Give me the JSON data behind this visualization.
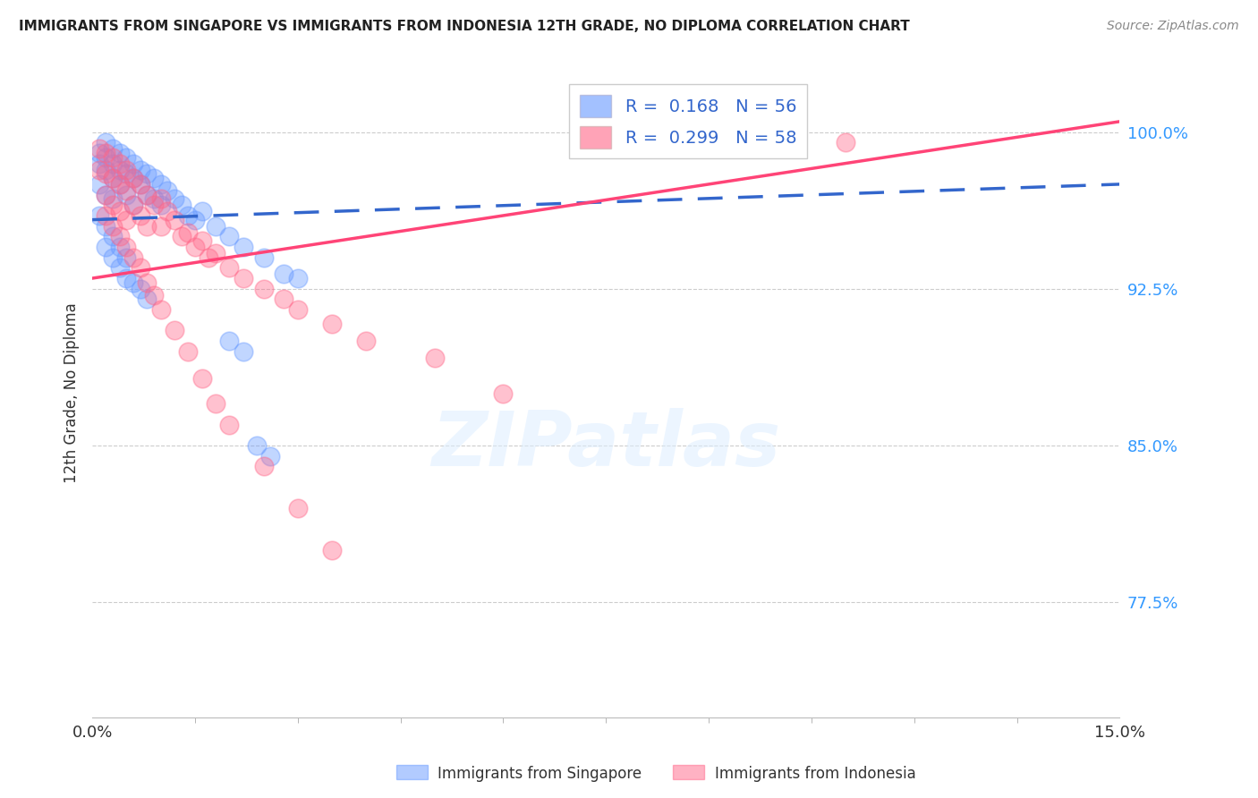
{
  "title": "IMMIGRANTS FROM SINGAPORE VS IMMIGRANTS FROM INDONESIA 12TH GRADE, NO DIPLOMA CORRELATION CHART",
  "source": "Source: ZipAtlas.com",
  "ylabel": "12th Grade, No Diploma",
  "ytick_labels": [
    "100.0%",
    "92.5%",
    "85.0%",
    "77.5%"
  ],
  "ytick_values": [
    1.0,
    0.925,
    0.85,
    0.775
  ],
  "xlim": [
    0.0,
    0.15
  ],
  "ylim": [
    0.72,
    1.03
  ],
  "singapore_color": "#6699FF",
  "indonesia_color": "#FF6688",
  "sg_line_color": "#3366CC",
  "id_line_color": "#FF4477",
  "singapore_R": 0.168,
  "singapore_N": 56,
  "indonesia_R": 0.299,
  "indonesia_N": 58,
  "legend_label_1": "Immigrants from Singapore",
  "legend_label_2": "Immigrants from Indonesia",
  "watermark": "ZIPatlas",
  "sg_line_x0": 0.0,
  "sg_line_x1": 0.15,
  "sg_line_y0": 0.958,
  "sg_line_y1": 0.975,
  "id_line_x0": 0.0,
  "id_line_x1": 0.15,
  "id_line_y0": 0.93,
  "id_line_y1": 1.005,
  "singapore_x": [
    0.001,
    0.001,
    0.001,
    0.002,
    0.002,
    0.002,
    0.002,
    0.003,
    0.003,
    0.003,
    0.003,
    0.004,
    0.004,
    0.004,
    0.005,
    0.005,
    0.005,
    0.006,
    0.006,
    0.006,
    0.007,
    0.007,
    0.008,
    0.008,
    0.009,
    0.009,
    0.01,
    0.01,
    0.011,
    0.012,
    0.013,
    0.014,
    0.015,
    0.016,
    0.018,
    0.02,
    0.022,
    0.025,
    0.028,
    0.03,
    0.001,
    0.002,
    0.002,
    0.003,
    0.003,
    0.004,
    0.004,
    0.005,
    0.005,
    0.006,
    0.007,
    0.008,
    0.02,
    0.022,
    0.024,
    0.026
  ],
  "singapore_y": [
    0.99,
    0.985,
    0.975,
    0.995,
    0.988,
    0.982,
    0.97,
    0.992,
    0.985,
    0.978,
    0.968,
    0.99,
    0.982,
    0.975,
    0.988,
    0.98,
    0.97,
    0.985,
    0.978,
    0.965,
    0.982,
    0.975,
    0.98,
    0.97,
    0.978,
    0.968,
    0.975,
    0.965,
    0.972,
    0.968,
    0.965,
    0.96,
    0.958,
    0.962,
    0.955,
    0.95,
    0.945,
    0.94,
    0.932,
    0.93,
    0.96,
    0.955,
    0.945,
    0.95,
    0.94,
    0.945,
    0.935,
    0.94,
    0.93,
    0.928,
    0.925,
    0.92,
    0.9,
    0.895,
    0.85,
    0.845
  ],
  "indonesia_x": [
    0.001,
    0.001,
    0.002,
    0.002,
    0.002,
    0.003,
    0.003,
    0.003,
    0.004,
    0.004,
    0.004,
    0.005,
    0.005,
    0.005,
    0.006,
    0.006,
    0.007,
    0.007,
    0.008,
    0.008,
    0.009,
    0.01,
    0.01,
    0.011,
    0.012,
    0.013,
    0.014,
    0.015,
    0.016,
    0.017,
    0.018,
    0.02,
    0.022,
    0.025,
    0.028,
    0.03,
    0.035,
    0.04,
    0.05,
    0.06,
    0.002,
    0.003,
    0.004,
    0.005,
    0.006,
    0.007,
    0.008,
    0.009,
    0.01,
    0.012,
    0.014,
    0.016,
    0.018,
    0.02,
    0.025,
    0.03,
    0.035,
    0.11
  ],
  "indonesia_y": [
    0.992,
    0.982,
    0.99,
    0.98,
    0.97,
    0.988,
    0.978,
    0.965,
    0.985,
    0.975,
    0.962,
    0.982,
    0.972,
    0.958,
    0.978,
    0.965,
    0.975,
    0.96,
    0.97,
    0.955,
    0.965,
    0.968,
    0.955,
    0.962,
    0.958,
    0.95,
    0.952,
    0.945,
    0.948,
    0.94,
    0.942,
    0.935,
    0.93,
    0.925,
    0.92,
    0.915,
    0.908,
    0.9,
    0.892,
    0.875,
    0.96,
    0.955,
    0.95,
    0.945,
    0.94,
    0.935,
    0.928,
    0.922,
    0.915,
    0.905,
    0.895,
    0.882,
    0.87,
    0.86,
    0.84,
    0.82,
    0.8,
    0.995
  ]
}
